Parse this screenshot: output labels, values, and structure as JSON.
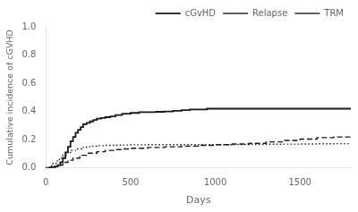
{
  "chart_data": {
    "type": "line",
    "xlabel": "Days",
    "ylabel": "Cumulative incidence of cGVHD",
    "xlim": [
      0,
      1800
    ],
    "ylim": [
      0.0,
      1.0
    ],
    "xticks": [
      0,
      500,
      1000,
      1500
    ],
    "yticks": [
      {
        "value": 0.0,
        "label": "0.0"
      },
      0.2,
      0.4,
      0.6,
      0.8,
      {
        "value": 1.0,
        "label": "1.0"
      }
    ],
    "grid": false,
    "legend": "top-right",
    "series": [
      {
        "name": "cGvHD",
        "color": "#1a1a1a",
        "line_style": "solid",
        "x": [
          0,
          30,
          55,
          70,
          85,
          100,
          115,
          130,
          145,
          160,
          175,
          190,
          205,
          220,
          240,
          260,
          280,
          300,
          325,
          350,
          380,
          410,
          450,
          500,
          550,
          600,
          650,
          700,
          750,
          800,
          850,
          900,
          950,
          1000,
          1100,
          1200,
          1300,
          1400,
          1500,
          1600,
          1700,
          1800
        ],
        "values": [
          0,
          0.0,
          0.005,
          0.01,
          0.02,
          0.04,
          0.07,
          0.11,
          0.15,
          0.19,
          0.22,
          0.25,
          0.27,
          0.29,
          0.31,
          0.32,
          0.33,
          0.34,
          0.35,
          0.355,
          0.36,
          0.365,
          0.375,
          0.385,
          0.39,
          0.395,
          0.395,
          0.398,
          0.4,
          0.405,
          0.41,
          0.415,
          0.415,
          0.42,
          0.42,
          0.42,
          0.42,
          0.42,
          0.42,
          0.42,
          0.42,
          0.42
        ]
      },
      {
        "name": "Relapse",
        "color": "#1a1a1a",
        "line_style": "dashed",
        "x": [
          0,
          50,
          80,
          100,
          130,
          160,
          200,
          250,
          300,
          350,
          400,
          450,
          500,
          600,
          700,
          800,
          900,
          1000,
          1100,
          1200,
          1300,
          1400,
          1500,
          1600,
          1700,
          1800
        ],
        "values": [
          0,
          0.0,
          0.01,
          0.02,
          0.04,
          0.055,
          0.07,
          0.09,
          0.105,
          0.115,
          0.125,
          0.13,
          0.135,
          0.14,
          0.145,
          0.15,
          0.155,
          0.16,
          0.165,
          0.17,
          0.175,
          0.185,
          0.195,
          0.205,
          0.215,
          0.22
        ]
      },
      {
        "name": "TRM",
        "color": "#1a1a1a",
        "line_style": "dotted",
        "x": [
          0,
          20,
          40,
          60,
          80,
          100,
          120,
          150,
          180,
          210,
          240,
          270,
          300,
          350,
          400,
          450,
          500,
          600,
          700,
          800,
          900,
          1000,
          1100,
          1200,
          1300,
          1400,
          1500,
          1600,
          1700,
          1800
        ],
        "values": [
          0,
          0.005,
          0.015,
          0.03,
          0.05,
          0.07,
          0.09,
          0.11,
          0.125,
          0.135,
          0.145,
          0.15,
          0.155,
          0.158,
          0.16,
          0.162,
          0.163,
          0.164,
          0.165,
          0.165,
          0.165,
          0.165,
          0.165,
          0.166,
          0.167,
          0.168,
          0.169,
          0.17,
          0.171,
          0.172
        ]
      }
    ]
  }
}
